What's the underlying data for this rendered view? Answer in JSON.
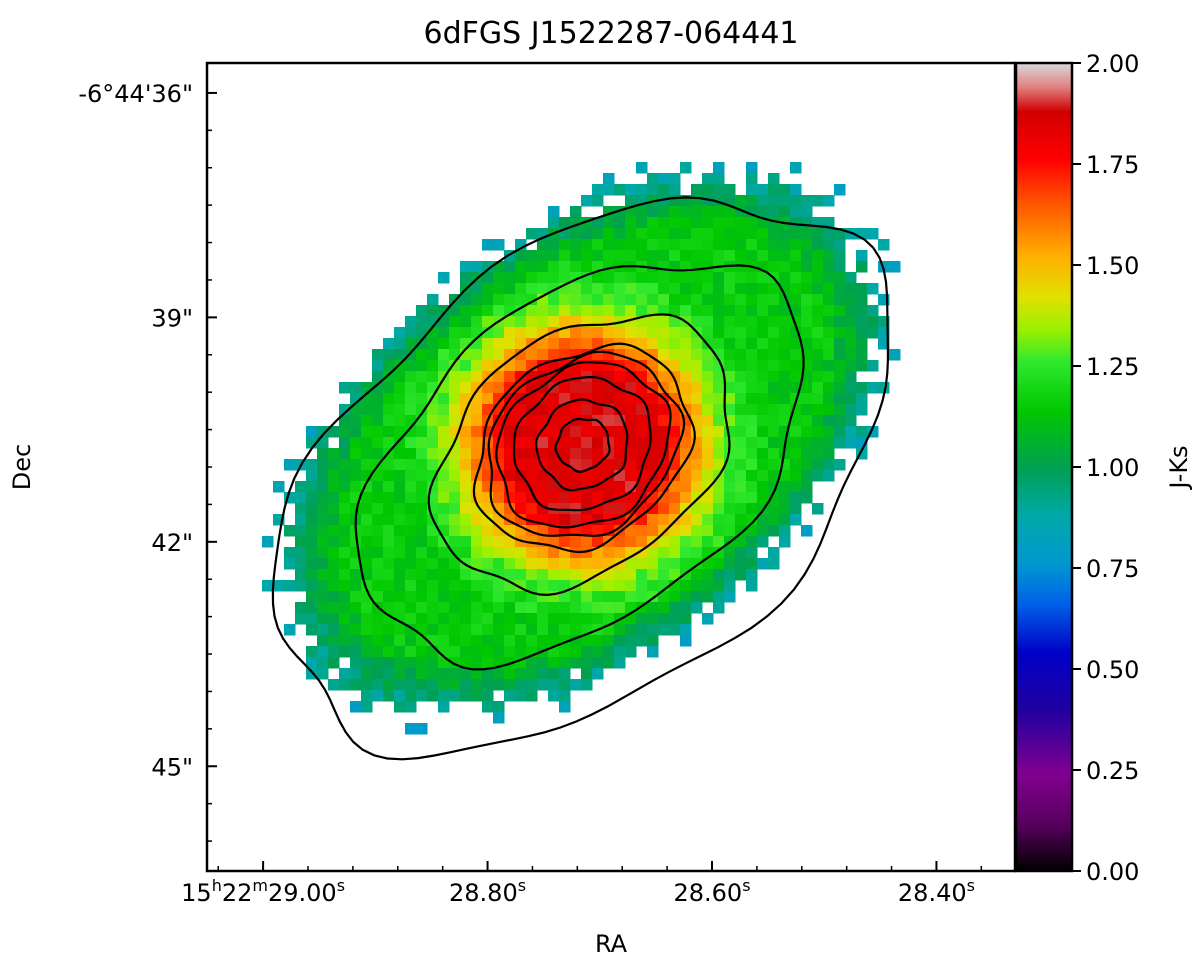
{
  "chart_data": {
    "type": "heatmap",
    "title": "6dFGS J1522287-064441",
    "xlabel": "RA",
    "ylabel": "Dec",
    "x_ticks": [
      {
        "h": "15",
        "m": "22",
        "s": "29.00",
        "value_s": 29.0
      },
      {
        "s": "28.80",
        "value_s": 28.8
      },
      {
        "s": "28.60",
        "value_s": 28.6
      },
      {
        "s": "28.40",
        "value_s": 28.4
      }
    ],
    "x_unit_labels": {
      "h": "h",
      "m": "m",
      "s": "s"
    },
    "y_ticks": [
      {
        "label": "-6°44'36\"",
        "value_arcsec": 36
      },
      {
        "label": "39\"",
        "value_arcsec": 39
      },
      {
        "label": "42\"",
        "value_arcsec": 42
      },
      {
        "label": "45\"",
        "value_arcsec": 45
      }
    ],
    "ra_range_s": [
      29.05,
      28.33
    ],
    "dec_range_arcsec": [
      35.6,
      46.4
    ],
    "galaxy": {
      "center": {
        "ra_s": 28.715,
        "dec_arcsec": 40.7
      },
      "position_angle_deg": -38,
      "outer_semi_major_arcsec": 4.6,
      "outer_semi_minor_arcsec": 2.8,
      "core_color_value": 1.85,
      "disk_color_value": 1.15,
      "edge_color_value": 0.9
    },
    "contours": [
      {
        "level": 1,
        "ra_offset_s": 0.0,
        "dec_offset_arcsec": 0.4,
        "a_arcsec": 4.7,
        "b_arcsec": 2.9
      },
      {
        "level": 2,
        "ra_offset_s": 0.0,
        "dec_offset_arcsec": 0.2,
        "a_arcsec": 3.4,
        "b_arcsec": 2.1
      },
      {
        "level": 3,
        "ra_offset_s": 0.0,
        "dec_offset_arcsec": 0.1,
        "a_arcsec": 2.2,
        "b_arcsec": 1.55
      },
      {
        "level": 4,
        "ra_offset_s": 0.0,
        "dec_offset_arcsec": 0.05,
        "a_arcsec": 1.55,
        "b_arcsec": 1.22
      },
      {
        "level": 5,
        "ra_offset_s": 0.0,
        "dec_offset_arcsec": 0.03,
        "a_arcsec": 1.38,
        "b_arcsec": 1.12
      },
      {
        "level": 6,
        "ra_offset_s": 0.0,
        "dec_offset_arcsec": 0.02,
        "a_arcsec": 1.22,
        "b_arcsec": 1.02
      },
      {
        "level": 7,
        "ra_offset_s": 0.0,
        "dec_offset_arcsec": 0.0,
        "a_arcsec": 0.95,
        "b_arcsec": 0.85
      },
      {
        "level": 8,
        "ra_offset_s": 0.0,
        "dec_offset_arcsec": 0.0,
        "a_arcsec": 0.62,
        "b_arcsec": 0.58
      },
      {
        "level": 9,
        "ra_offset_s": 0.0,
        "dec_offset_arcsec": 0.0,
        "a_arcsec": 0.36,
        "b_arcsec": 0.34
      }
    ],
    "colorbar": {
      "label": "J-Ks",
      "range": [
        0.0,
        2.0
      ],
      "ticks": [
        "0.00",
        "0.25",
        "0.50",
        "0.75",
        "1.00",
        "1.25",
        "1.50",
        "1.75",
        "2.00"
      ],
      "colormap": [
        [
          0.0,
          "#000000"
        ],
        [
          0.06,
          "#5a0060"
        ],
        [
          0.12,
          "#800090"
        ],
        [
          0.2,
          "#2000a0"
        ],
        [
          0.27,
          "#0000c8"
        ],
        [
          0.33,
          "#0060e8"
        ],
        [
          0.38,
          "#0098d0"
        ],
        [
          0.44,
          "#00a8a8"
        ],
        [
          0.5,
          "#00a050"
        ],
        [
          0.57,
          "#00c800"
        ],
        [
          0.63,
          "#2fe82f"
        ],
        [
          0.67,
          "#9bf000"
        ],
        [
          0.71,
          "#e0e000"
        ],
        [
          0.76,
          "#ffb000"
        ],
        [
          0.83,
          "#ff5000"
        ],
        [
          0.88,
          "#ff0000"
        ],
        [
          0.94,
          "#d00000"
        ],
        [
          0.97,
          "#e08080"
        ],
        [
          1.0,
          "#d8d8d8"
        ]
      ]
    },
    "grid": false,
    "legend": "none"
  }
}
